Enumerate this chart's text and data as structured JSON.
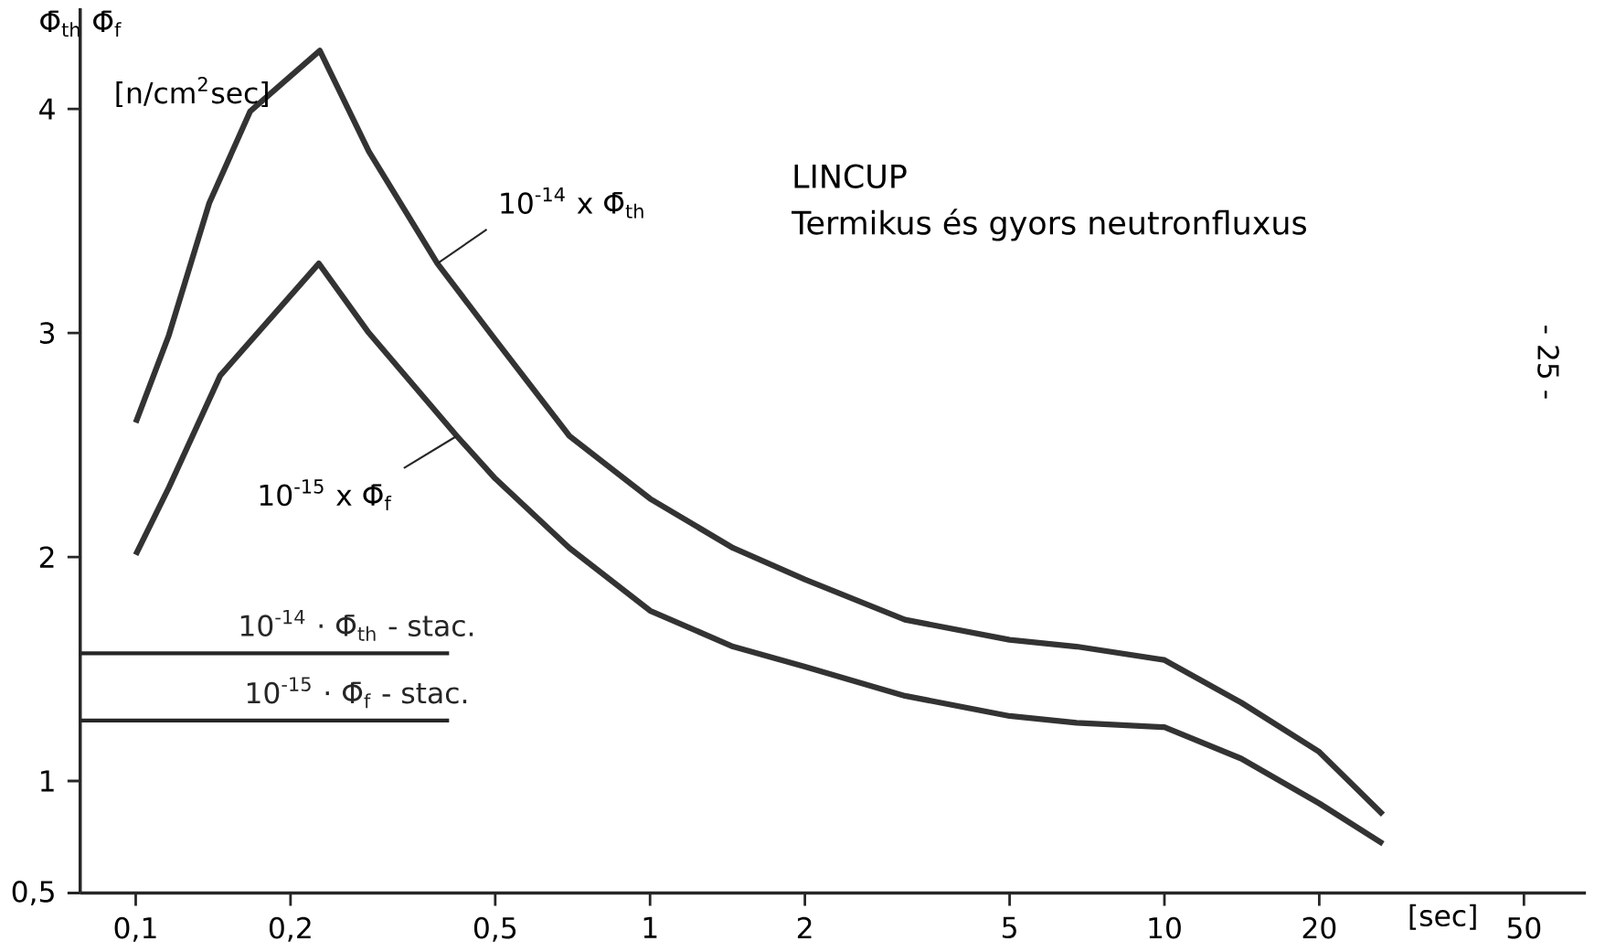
{
  "chart_data": {
    "type": "line",
    "title": "LINCUP",
    "subtitle": "Termikus és gyors neutronfluxus",
    "xlabel": "[sec]",
    "ylabel": "Φ̄$_{th}$  Φ̄$_{f}$",
    "annotations": [
      "[n/cm$^{2}$sec]",
      "- 25 -"
    ],
    "log": "x",
    "grid": false,
    "marker": "none",
    "line_style": "solid",
    "xlim": [
      0.078,
      66
    ],
    "ylim": [
      0.5,
      4.45
    ],
    "xticks": [
      {
        "value": 0.1,
        "label": "0,1"
      },
      {
        "value": 0.2,
        "label": "0,2"
      },
      {
        "value": 0.5,
        "label": "0,5"
      },
      1,
      2,
      5,
      10,
      20,
      50
    ],
    "yticks": [
      {
        "value": 0.5,
        "label": "0,5"
      },
      1,
      2,
      3,
      4
    ],
    "series": [
      {
        "name": "10$^{-14}$ x Φ̄$_{th}$",
        "color": "#333333",
        "x": [
          0.1,
          0.116,
          0.139,
          0.167,
          0.228,
          0.284,
          0.386,
          0.5,
          0.697,
          1,
          1.45,
          2,
          3.13,
          5,
          6.75,
          10,
          14.1,
          20,
          26.6
        ],
        "values": [
          2.6,
          2.99,
          3.58,
          3.99,
          4.26,
          3.81,
          3.31,
          2.97,
          2.54,
          2.26,
          2.04,
          1.9,
          1.72,
          1.63,
          1.6,
          1.54,
          1.35,
          1.13,
          0.85
        ]
      },
      {
        "name": "10$^{-15}$ x Φ̄$_{f}$",
        "color": "#333333",
        "x": [
          0.1,
          0.116,
          0.146,
          0.227,
          0.284,
          0.421,
          0.5,
          0.697,
          1,
          1.45,
          2,
          3.13,
          5,
          6.75,
          10,
          14.1,
          20,
          26.6
        ],
        "values": [
          2.01,
          2.31,
          2.81,
          3.31,
          3.0,
          2.54,
          2.35,
          2.04,
          1.76,
          1.6,
          1.51,
          1.38,
          1.29,
          1.26,
          1.24,
          1.1,
          0.9,
          0.72
        ]
      }
    ],
    "ref_lines": [
      {
        "axis": "y",
        "value": 1.57,
        "label": "10$^{-14}$ · Φ̄$_{th}$ - stac."
      },
      {
        "axis": "y",
        "value": 1.27,
        "label": "10$^{-15}$ · Φ̄$_{f}$ - stac."
      }
    ]
  }
}
